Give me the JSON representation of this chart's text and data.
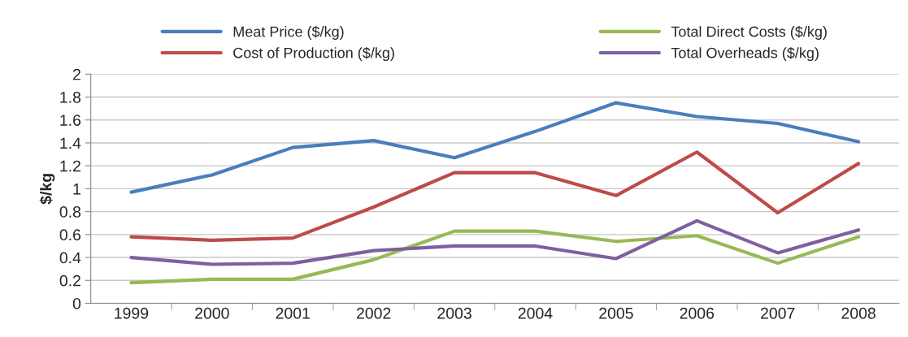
{
  "chart_data": {
    "type": "line",
    "ylabel": "$/kg",
    "categories": [
      "1999",
      "2000",
      "2001",
      "2002",
      "2003",
      "2004",
      "2005",
      "2006",
      "2007",
      "2008"
    ],
    "series": [
      {
        "name": "Meat Price ($/kg)",
        "color": "#4a7ebb",
        "values": [
          0.97,
          1.12,
          1.36,
          1.42,
          1.27,
          1.5,
          1.75,
          1.63,
          1.57,
          1.41
        ]
      },
      {
        "name": "Cost of Production ($/kg)",
        "color": "#be4b48",
        "values": [
          0.58,
          0.55,
          0.57,
          0.84,
          1.14,
          1.14,
          0.94,
          1.32,
          0.79,
          1.22
        ]
      },
      {
        "name": "Total Direct Costs ($/kg)",
        "color": "#98b954",
        "values": [
          0.18,
          0.21,
          0.21,
          0.38,
          0.63,
          0.63,
          0.54,
          0.59,
          0.35,
          0.58
        ]
      },
      {
        "name": "Total Overheads ($/kg)",
        "color": "#7d60a0",
        "values": [
          0.4,
          0.34,
          0.35,
          0.46,
          0.5,
          0.5,
          0.39,
          0.72,
          0.44,
          0.64
        ]
      }
    ],
    "ylim": [
      0,
      2
    ],
    "yticks": [
      0,
      0.2,
      0.4,
      0.6,
      0.8,
      1,
      1.2,
      1.4,
      1.6,
      1.8,
      2
    ],
    "grid": "y",
    "legend": "top",
    "marker": "none",
    "line_style": "solid"
  }
}
